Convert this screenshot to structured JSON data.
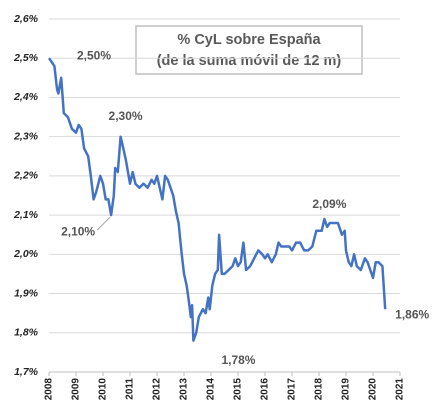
{
  "chart_data": {
    "type": "line",
    "title": "% CyL sobre España",
    "subtitle": "(de la suma móvil de 12 m)",
    "xlim": [
      2008,
      2021
    ],
    "xticks": [
      2008,
      2009,
      2010,
      2011,
      2012,
      2013,
      2014,
      2015,
      2016,
      2017,
      2018,
      2019,
      2020,
      2021
    ],
    "ylim": [
      1.7,
      2.6
    ],
    "yticks": [
      {
        "value": 1.7,
        "label": "1,7%"
      },
      {
        "value": 1.8,
        "label": "1,8%"
      },
      {
        "value": 1.9,
        "label": "1,9%"
      },
      {
        "value": 2.0,
        "label": "2,0%"
      },
      {
        "value": 2.1,
        "label": "2,1%"
      },
      {
        "value": 2.2,
        "label": "2,2%"
      },
      {
        "value": 2.3,
        "label": "2,3%"
      },
      {
        "value": 2.4,
        "label": "2,4%"
      },
      {
        "value": 2.5,
        "label": "2,5%"
      },
      {
        "value": 2.6,
        "label": "2,6%"
      }
    ],
    "grid": true,
    "series": [
      {
        "color": "#4472c4",
        "x": [
          2008.0,
          2008.1,
          2008.2,
          2008.3,
          2008.35,
          2008.45,
          2008.55,
          2008.7,
          2008.85,
          2009.0,
          2009.1,
          2009.2,
          2009.3,
          2009.45,
          2009.55,
          2009.65,
          2009.75,
          2009.9,
          2010.0,
          2010.1,
          2010.2,
          2010.3,
          2010.4,
          2010.45,
          2010.55,
          2010.65,
          2010.75,
          2010.85,
          2011.0,
          2011.1,
          2011.2,
          2011.35,
          2011.5,
          2011.65,
          2011.8,
          2011.9,
          2012.0,
          2012.1,
          2012.2,
          2012.3,
          2012.4,
          2012.5,
          2012.6,
          2012.7,
          2012.8,
          2012.9,
          2013.0,
          2013.1,
          2013.2,
          2013.25,
          2013.3,
          2013.35,
          2013.45,
          2013.55,
          2013.7,
          2013.8,
          2013.9,
          2013.95,
          2014.05,
          2014.15,
          2014.25,
          2014.3,
          2014.4,
          2014.5,
          2014.65,
          2014.8,
          2014.9,
          2015.0,
          2015.1,
          2015.2,
          2015.3,
          2015.45,
          2015.6,
          2015.75,
          2015.9,
          2016.0,
          2016.1,
          2016.25,
          2016.4,
          2016.5,
          2016.6,
          2016.75,
          2016.9,
          2017.0,
          2017.15,
          2017.3,
          2017.45,
          2017.6,
          2017.75,
          2017.9,
          2018.0,
          2018.1,
          2018.2,
          2018.3,
          2018.4,
          2018.55,
          2018.7,
          2018.85,
          2018.95,
          2019.0,
          2019.1,
          2019.2,
          2019.3,
          2019.4,
          2019.55,
          2019.7,
          2019.8,
          2019.9,
          2020.0,
          2020.1,
          2020.2,
          2020.35,
          2020.45
        ],
        "values": [
          2.5,
          2.49,
          2.48,
          2.42,
          2.41,
          2.45,
          2.36,
          2.35,
          2.32,
          2.31,
          2.33,
          2.32,
          2.27,
          2.25,
          2.2,
          2.14,
          2.16,
          2.2,
          2.18,
          2.14,
          2.14,
          2.1,
          2.15,
          2.22,
          2.21,
          2.3,
          2.27,
          2.24,
          2.18,
          2.21,
          2.18,
          2.17,
          2.18,
          2.17,
          2.19,
          2.18,
          2.2,
          2.17,
          2.14,
          2.2,
          2.19,
          2.17,
          2.15,
          2.11,
          2.08,
          2.01,
          1.95,
          1.92,
          1.87,
          1.84,
          1.87,
          1.78,
          1.8,
          1.84,
          1.86,
          1.85,
          1.89,
          1.86,
          1.92,
          1.95,
          1.96,
          2.05,
          1.95,
          1.95,
          1.96,
          1.97,
          1.99,
          1.97,
          1.98,
          2.03,
          1.96,
          1.97,
          1.99,
          2.01,
          2.0,
          1.99,
          2.0,
          1.98,
          2.0,
          2.03,
          2.02,
          2.02,
          2.02,
          2.01,
          2.03,
          2.03,
          2.01,
          2.01,
          2.02,
          2.06,
          2.06,
          2.06,
          2.09,
          2.07,
          2.08,
          2.08,
          2.08,
          2.05,
          2.06,
          2.01,
          1.98,
          1.97,
          2.0,
          1.97,
          1.96,
          1.99,
          1.98,
          1.96,
          1.94,
          1.98,
          1.98,
          1.97,
          1.86
        ]
      }
    ],
    "annotations": [
      {
        "text": "2,50%",
        "x": 2008.0,
        "y": 2.5
      },
      {
        "text": "2,30%",
        "x": 2010.65,
        "y": 2.3
      },
      {
        "text": "2,10%",
        "x": 2010.3,
        "y": 2.1
      },
      {
        "text": "1,78%",
        "x": 2013.35,
        "y": 1.78
      },
      {
        "text": "2,09%",
        "x": 2018.2,
        "y": 2.09
      },
      {
        "text": "1,86%",
        "x": 2020.45,
        "y": 1.86
      }
    ]
  }
}
